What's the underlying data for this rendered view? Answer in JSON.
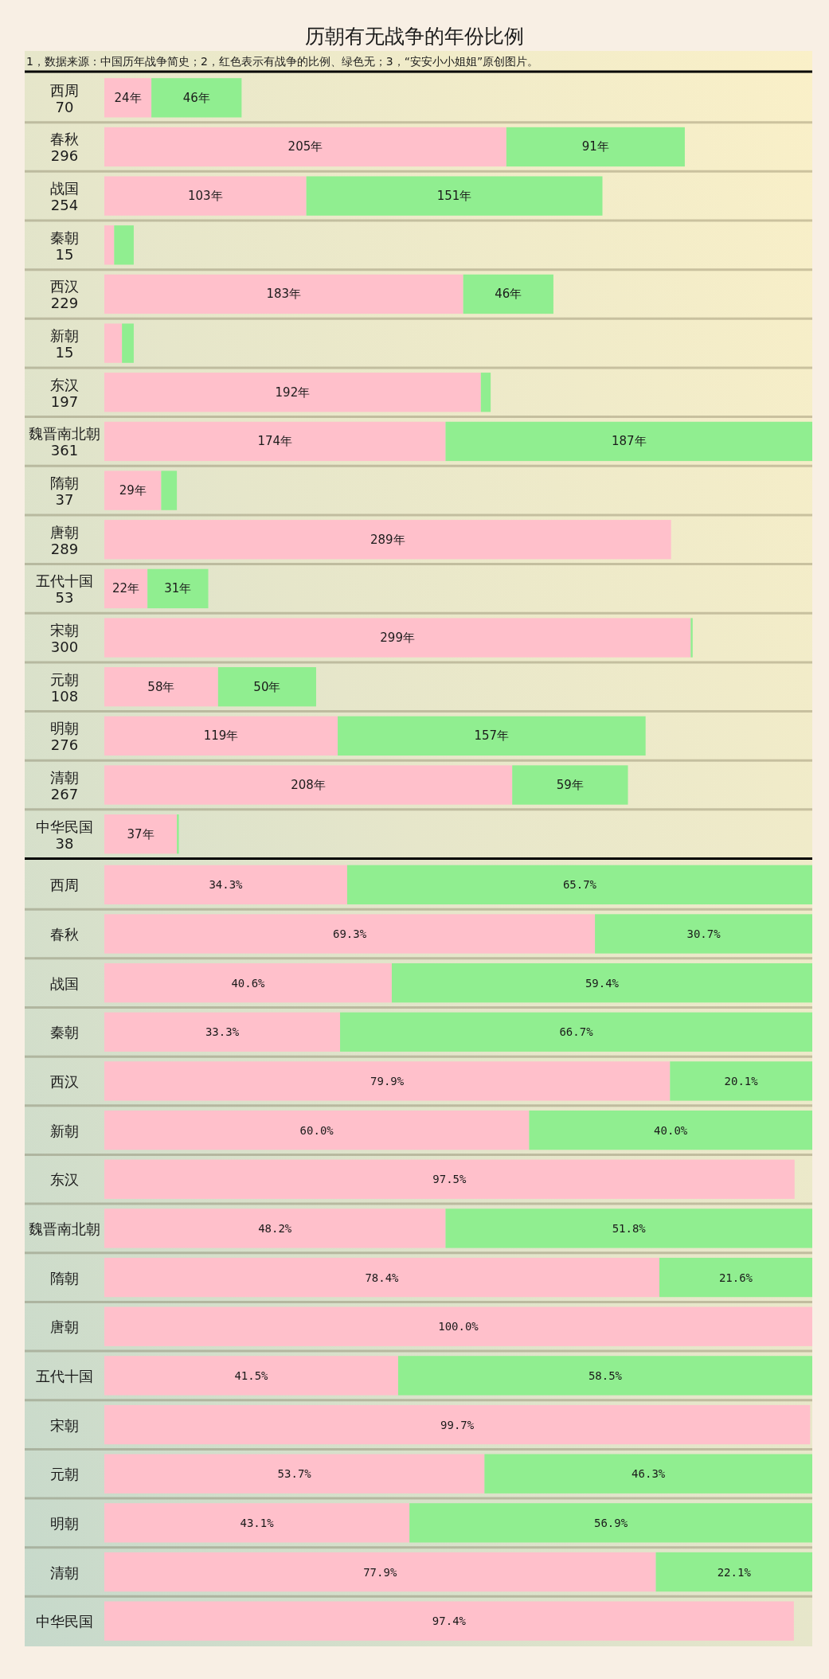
{
  "chart_data": [
    {
      "type": "bar",
      "orientation": "horizontal",
      "stacked": true,
      "title": "历朝有无战争的年份比例",
      "subtitle": "1，数据来源：中国历年战争简史；2，红色表示有战争的比例、绿色无；3，“安安小小姐姐”原创图片。",
      "categories": [
        "西周",
        "春秋",
        "战国",
        "秦朝",
        "西汉",
        "新朝",
        "东汉",
        "魏晋南北朝",
        "隋朝",
        "唐朝",
        "五代十国",
        "宋朝",
        "元朝",
        "明朝",
        "清朝",
        "中华民国"
      ],
      "totals": [
        "70",
        "296",
        "254",
        "15",
        "229",
        "15",
        "197",
        "361",
        "37",
        "289",
        "53",
        "300",
        "108",
        "276",
        "267",
        "38"
      ],
      "series": [
        {
          "color": "#ffc0cb",
          "values": [
            24,
            205,
            103,
            5,
            183,
            9,
            192,
            174,
            29,
            289,
            22,
            299,
            58,
            119,
            208,
            37
          ],
          "value_labels": [
            "24年",
            "205年",
            "103年",
            null,
            "183年",
            null,
            "192年",
            "174年",
            "29年",
            "289年",
            "22年",
            "299年",
            "58年",
            "119年",
            "208年",
            "37年"
          ]
        },
        {
          "color": "#90ee90",
          "values": [
            46,
            91,
            151,
            10,
            46,
            6,
            5,
            187,
            8,
            null,
            31,
            1,
            50,
            157,
            59,
            1
          ],
          "value_labels": [
            "46年",
            "91年",
            "151年",
            null,
            "46年",
            null,
            null,
            "187年",
            null,
            null,
            "31年",
            null,
            "50年",
            "157年",
            "59年",
            null
          ]
        }
      ],
      "xlim": [
        0,
        361
      ],
      "grid": "y",
      "tick_labels": "y"
    },
    {
      "type": "bar",
      "orientation": "horizontal",
      "stacked": true,
      "categories": [
        "西周",
        "春秋",
        "战国",
        "秦朝",
        "西汉",
        "新朝",
        "东汉",
        "魏晋南北朝",
        "隋朝",
        "唐朝",
        "五代十国",
        "宋朝",
        "元朝",
        "明朝",
        "清朝",
        "中华民国"
      ],
      "series": [
        {
          "color": "#ffc0cb",
          "values": [
            34.3,
            69.3,
            40.6,
            33.3,
            79.9,
            60.0,
            97.5,
            48.2,
            78.4,
            100.0,
            41.5,
            99.7,
            53.7,
            43.1,
            77.9,
            97.4
          ],
          "value_labels": [
            "34.3%",
            "69.3%",
            "40.6%",
            "33.3%",
            "79.9%",
            "60.0%",
            "97.5%",
            "48.2%",
            "78.4%",
            "100.0%",
            "41.5%",
            "99.7%",
            "53.7%",
            "43.1%",
            "77.9%",
            "97.4%"
          ]
        },
        {
          "color": "#90ee90",
          "values": [
            65.7,
            30.7,
            59.4,
            66.7,
            20.1,
            40.0,
            null,
            51.8,
            21.6,
            null,
            58.5,
            null,
            46.3,
            56.9,
            22.1,
            null
          ],
          "value_labels": [
            "65.7%",
            "30.7%",
            "59.4%",
            "66.7%",
            "20.1%",
            "40.0%",
            null,
            "51.8%",
            "21.6%",
            null,
            "58.5%",
            null,
            "46.3%",
            "56.9%",
            "22.1%",
            null
          ]
        }
      ],
      "xlim": [
        0,
        100
      ],
      "grid": "y",
      "tick_labels": "y"
    }
  ]
}
